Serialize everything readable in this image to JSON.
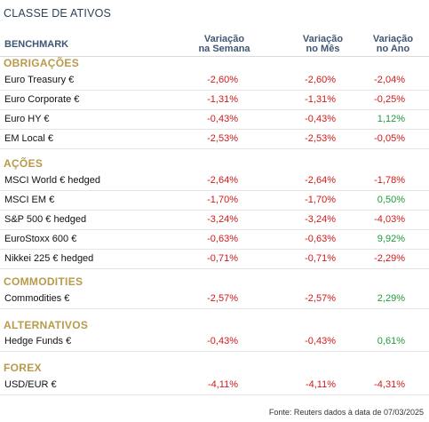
{
  "title": "CLASSE DE ATIVOS",
  "header": {
    "benchmark": "BENCHMARK",
    "col1": [
      "Variação",
      "na Semana"
    ],
    "col2": [
      "Variação",
      "no Mês"
    ],
    "col3": [
      "Variação",
      "no Ano"
    ]
  },
  "colors": {
    "negative": "#d11a1a",
    "positive": "#1e9c3a",
    "section": "#b89a4a",
    "header": "#3f5775"
  },
  "sections": [
    {
      "name": "OBRIGAÇÕES",
      "rows": [
        {
          "label": "Euro Treasury €",
          "week": "-2,60%",
          "month": "-2,60%",
          "year": "-2,04%"
        },
        {
          "label": "Euro Corporate €",
          "week": "-1,31%",
          "month": "-1,31%",
          "year": "-0,25%"
        },
        {
          "label": "Euro HY €",
          "week": "-0,43%",
          "month": "-0,43%",
          "year": "1,12%"
        },
        {
          "label": "EM Local €",
          "week": "-2,53%",
          "month": "-2,53%",
          "year": "-0,05%"
        }
      ]
    },
    {
      "name": "AÇÕES",
      "rows": [
        {
          "label": "MSCI World € hedged",
          "week": "-2,64%",
          "month": "-2,64%",
          "year": "-1,78%"
        },
        {
          "label": "MSCI EM €",
          "week": "-1,70%",
          "month": "-1,70%",
          "year": "0,50%"
        },
        {
          "label": "S&P 500 € hedged",
          "week": "-3,24%",
          "month": "-3,24%",
          "year": "-4,03%"
        },
        {
          "label": "EuroStoxx 600 €",
          "week": "-0,63%",
          "month": "-0,63%",
          "year": "9,92%"
        },
        {
          "label": "Nikkei 225 € hedged",
          "week": "-0,71%",
          "month": "-0,71%",
          "year": "-2,29%"
        }
      ]
    },
    {
      "name": "COMMODITIES",
      "rows": [
        {
          "label": "Commodities €",
          "week": "-2,57%",
          "month": "-2,57%",
          "year": "2,29%"
        }
      ]
    },
    {
      "name": "ALTERNATIVOS",
      "rows": [
        {
          "label": "Hedge Funds €",
          "week": "-0,43%",
          "month": "-0,43%",
          "year": "0,61%"
        }
      ]
    },
    {
      "name": "FOREX",
      "rows": [
        {
          "label": "USD/EUR €",
          "week": "-4,11%",
          "month": "-4,11%",
          "year": "-4,31%"
        }
      ]
    }
  ],
  "footer": "Fonte: Reuters dados à data de 07/03/2025"
}
